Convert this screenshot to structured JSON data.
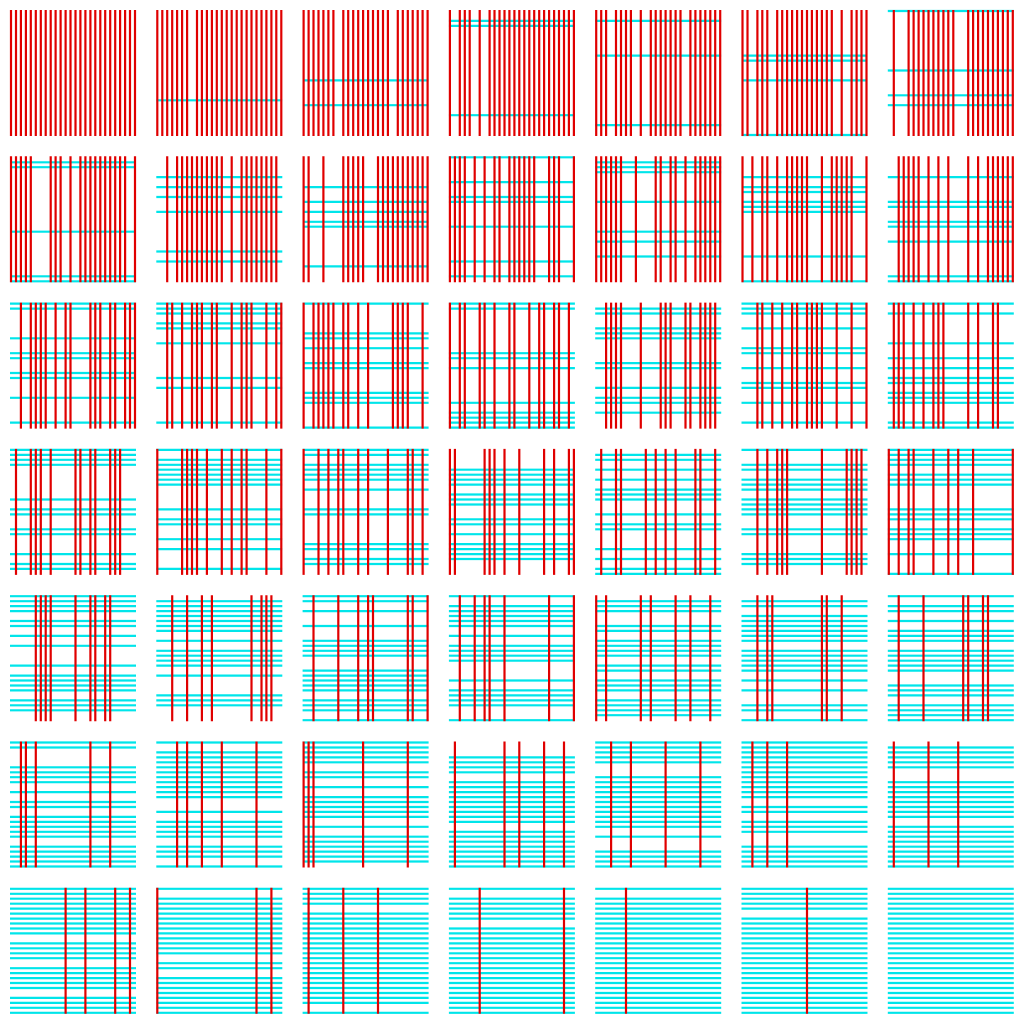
{
  "colors": {
    "background": "#ffffff",
    "horizontal_line": "#00e5ea",
    "vertical_line": "#e00000"
  },
  "layout_grid": {
    "rows": 7,
    "columns": 7
  },
  "panels": [
    {
      "row": 1,
      "col": 1,
      "horizontal_lines": 0,
      "vertical_lines": 26
    },
    {
      "row": 1,
      "col": 2,
      "horizontal_lines": 1,
      "vertical_lines": 25
    },
    {
      "row": 1,
      "col": 3,
      "horizontal_lines": 2,
      "vertical_lines": 24
    },
    {
      "row": 1,
      "col": 4,
      "horizontal_lines": 3,
      "vertical_lines": 23
    },
    {
      "row": 1,
      "col": 5,
      "horizontal_lines": 3,
      "vertical_lines": 22
    },
    {
      "row": 1,
      "col": 6,
      "horizontal_lines": 4,
      "vertical_lines": 22
    },
    {
      "row": 1,
      "col": 7,
      "horizontal_lines": 4,
      "vertical_lines": 21
    },
    {
      "row": 2,
      "col": 1,
      "horizontal_lines": 5,
      "vertical_lines": 20
    },
    {
      "row": 2,
      "col": 2,
      "horizontal_lines": 6,
      "vertical_lines": 20
    },
    {
      "row": 2,
      "col": 3,
      "horizontal_lines": 6,
      "vertical_lines": 19
    },
    {
      "row": 2,
      "col": 4,
      "horizontal_lines": 7,
      "vertical_lines": 18
    },
    {
      "row": 2,
      "col": 5,
      "horizontal_lines": 7,
      "vertical_lines": 18
    },
    {
      "row": 2,
      "col": 6,
      "horizontal_lines": 8,
      "vertical_lines": 17
    },
    {
      "row": 2,
      "col": 7,
      "horizontal_lines": 8,
      "vertical_lines": 16
    },
    {
      "row": 3,
      "col": 1,
      "horizontal_lines": 9,
      "vertical_lines": 16
    },
    {
      "row": 3,
      "col": 2,
      "horizontal_lines": 9,
      "vertical_lines": 15
    },
    {
      "row": 3,
      "col": 3,
      "horizontal_lines": 10,
      "vertical_lines": 15
    },
    {
      "row": 3,
      "col": 4,
      "horizontal_lines": 10,
      "vertical_lines": 14
    },
    {
      "row": 3,
      "col": 5,
      "horizontal_lines": 11,
      "vertical_lines": 14
    },
    {
      "row": 3,
      "col": 6,
      "horizontal_lines": 11,
      "vertical_lines": 13
    },
    {
      "row": 3,
      "col": 7,
      "horizontal_lines": 12,
      "vertical_lines": 12
    },
    {
      "row": 4,
      "col": 1,
      "horizontal_lines": 12,
      "vertical_lines": 12
    },
    {
      "row": 4,
      "col": 2,
      "horizontal_lines": 13,
      "vertical_lines": 12
    },
    {
      "row": 4,
      "col": 3,
      "horizontal_lines": 13,
      "vertical_lines": 11
    },
    {
      "row": 4,
      "col": 4,
      "horizontal_lines": 14,
      "vertical_lines": 11
    },
    {
      "row": 4,
      "col": 5,
      "horizontal_lines": 14,
      "vertical_lines": 10
    },
    {
      "row": 4,
      "col": 6,
      "horizontal_lines": 15,
      "vertical_lines": 10
    },
    {
      "row": 4,
      "col": 7,
      "horizontal_lines": 15,
      "vertical_lines": 9
    },
    {
      "row": 5,
      "col": 1,
      "horizontal_lines": 16,
      "vertical_lines": 9
    },
    {
      "row": 5,
      "col": 2,
      "horizontal_lines": 16,
      "vertical_lines": 8
    },
    {
      "row": 5,
      "col": 3,
      "horizontal_lines": 17,
      "vertical_lines": 8
    },
    {
      "row": 5,
      "col": 4,
      "horizontal_lines": 17,
      "vertical_lines": 7
    },
    {
      "row": 5,
      "col": 5,
      "horizontal_lines": 18,
      "vertical_lines": 7
    },
    {
      "row": 5,
      "col": 6,
      "horizontal_lines": 18,
      "vertical_lines": 6
    },
    {
      "row": 5,
      "col": 7,
      "horizontal_lines": 19,
      "vertical_lines": 6
    },
    {
      "row": 6,
      "col": 1,
      "horizontal_lines": 19,
      "vertical_lines": 5
    },
    {
      "row": 6,
      "col": 2,
      "horizontal_lines": 20,
      "vertical_lines": 5
    },
    {
      "row": 6,
      "col": 3,
      "horizontal_lines": 20,
      "vertical_lines": 5
    },
    {
      "row": 6,
      "col": 4,
      "horizontal_lines": 21,
      "vertical_lines": 5
    },
    {
      "row": 6,
      "col": 5,
      "horizontal_lines": 21,
      "vertical_lines": 4
    },
    {
      "row": 6,
      "col": 6,
      "horizontal_lines": 22,
      "vertical_lines": 3
    },
    {
      "row": 6,
      "col": 7,
      "horizontal_lines": 22,
      "vertical_lines": 3
    },
    {
      "row": 7,
      "col": 1,
      "horizontal_lines": 23,
      "vertical_lines": 4
    },
    {
      "row": 7,
      "col": 2,
      "horizontal_lines": 23,
      "vertical_lines": 3
    },
    {
      "row": 7,
      "col": 3,
      "horizontal_lines": 24,
      "vertical_lines": 3
    },
    {
      "row": 7,
      "col": 4,
      "horizontal_lines": 24,
      "vertical_lines": 2
    },
    {
      "row": 7,
      "col": 5,
      "horizontal_lines": 25,
      "vertical_lines": 1
    },
    {
      "row": 7,
      "col": 6,
      "horizontal_lines": 25,
      "vertical_lines": 1
    },
    {
      "row": 7,
      "col": 7,
      "horizontal_lines": 26,
      "vertical_lines": 0
    }
  ]
}
